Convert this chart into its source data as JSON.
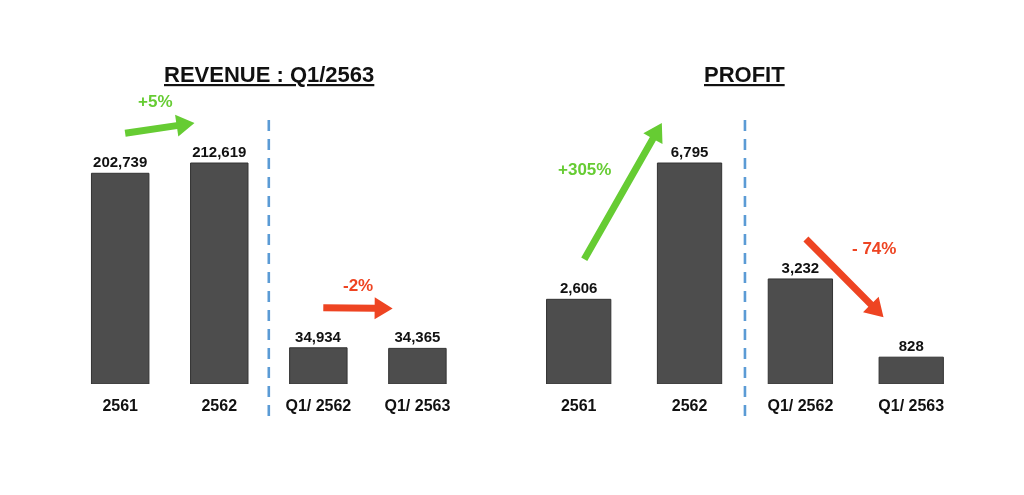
{
  "chart_data": [
    {
      "type": "bar",
      "title": "REVENUE : Q1/2563",
      "categories": [
        "2561",
        "2562",
        "Q1/ 2562",
        "Q1/ 2563"
      ],
      "values": [
        202739,
        212619,
        34934,
        34365
      ],
      "color": "#4d4d4d",
      "value_labels": [
        "202,739",
        "212,619",
        "34,934",
        "34,365"
      ],
      "annotations": [
        "+5%",
        "-2%"
      ]
    },
    {
      "type": "bar",
      "title": "PROFIT",
      "categories": [
        "2561",
        "2562",
        "Q1/ 2562",
        "Q1/ 2563"
      ],
      "values": [
        2606,
        6795,
        3232,
        828
      ],
      "color": "#4d4d4d",
      "value_labels": [
        "2,606",
        "6,795",
        "3,232",
        "828"
      ],
      "annotations": [
        "+305%",
        "- 74%"
      ]
    }
  ]
}
